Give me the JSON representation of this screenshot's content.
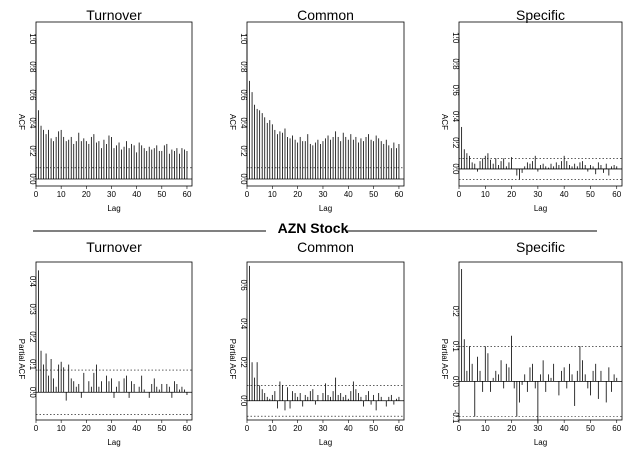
{
  "figure": {
    "banner": "AZN Stock"
  },
  "chart_data": [
    {
      "type": "bar",
      "title": "Turnover",
      "xlabel": "Lag",
      "ylabel": "ACF",
      "xlim": [
        0,
        62
      ],
      "ylim": [
        -0.05,
        1.12
      ],
      "xticks": [
        0,
        10,
        20,
        30,
        40,
        50,
        60
      ],
      "yticks": [
        0.0,
        0.2,
        0.4,
        0.6,
        0.8,
        1.0
      ],
      "ytick_labels": [
        "0.0",
        "0.2",
        "0.4",
        "0.6",
        "0.8",
        "1.0"
      ],
      "conf_bound": 0.08,
      "lags": [
        0,
        1,
        2,
        3,
        4,
        5,
        6,
        7,
        8,
        9,
        10,
        11,
        12,
        13,
        14,
        15,
        16,
        17,
        18,
        19,
        20,
        21,
        22,
        23,
        24,
        25,
        26,
        27,
        28,
        29,
        30,
        31,
        32,
        33,
        34,
        35,
        36,
        37,
        38,
        39,
        40,
        41,
        42,
        43,
        44,
        45,
        46,
        47,
        48,
        49,
        50,
        51,
        52,
        53,
        54,
        55,
        56,
        57,
        58,
        59,
        60
      ],
      "values": [
        1.0,
        0.49,
        0.38,
        0.35,
        0.32,
        0.35,
        0.29,
        0.27,
        0.3,
        0.34,
        0.35,
        0.3,
        0.27,
        0.28,
        0.3,
        0.25,
        0.27,
        0.33,
        0.27,
        0.29,
        0.27,
        0.25,
        0.3,
        0.32,
        0.26,
        0.27,
        0.22,
        0.28,
        0.25,
        0.31,
        0.3,
        0.22,
        0.24,
        0.26,
        0.21,
        0.23,
        0.27,
        0.22,
        0.25,
        0.24,
        0.19,
        0.26,
        0.24,
        0.22,
        0.2,
        0.23,
        0.21,
        0.22,
        0.24,
        0.2,
        0.2,
        0.24,
        0.25,
        0.18,
        0.21,
        0.2,
        0.22,
        0.18,
        0.22,
        0.21,
        0.2
      ]
    },
    {
      "type": "bar",
      "title": "Common",
      "xlabel": "Lag",
      "ylabel": "ACF",
      "xlim": [
        0,
        62
      ],
      "ylim": [
        -0.05,
        1.12
      ],
      "xticks": [
        0,
        10,
        20,
        30,
        40,
        50,
        60
      ],
      "yticks": [
        0.0,
        0.2,
        0.4,
        0.6,
        0.8,
        1.0
      ],
      "ytick_labels": [
        "0.0",
        "0.2",
        "0.4",
        "0.6",
        "0.8",
        "1.0"
      ],
      "conf_bound": 0.08,
      "lags": [
        0,
        1,
        2,
        3,
        4,
        5,
        6,
        7,
        8,
        9,
        10,
        11,
        12,
        13,
        14,
        15,
        16,
        17,
        18,
        19,
        20,
        21,
        22,
        23,
        24,
        25,
        26,
        27,
        28,
        29,
        30,
        31,
        32,
        33,
        34,
        35,
        36,
        37,
        38,
        39,
        40,
        41,
        42,
        43,
        44,
        45,
        46,
        47,
        48,
        49,
        50,
        51,
        52,
        53,
        54,
        55,
        56,
        57,
        58,
        59,
        60
      ],
      "values": [
        1.0,
        0.7,
        0.62,
        0.53,
        0.5,
        0.49,
        0.47,
        0.44,
        0.4,
        0.42,
        0.39,
        0.35,
        0.32,
        0.34,
        0.33,
        0.36,
        0.3,
        0.29,
        0.31,
        0.28,
        0.26,
        0.3,
        0.27,
        0.27,
        0.32,
        0.25,
        0.24,
        0.26,
        0.28,
        0.25,
        0.27,
        0.29,
        0.31,
        0.28,
        0.3,
        0.34,
        0.3,
        0.27,
        0.33,
        0.3,
        0.28,
        0.32,
        0.28,
        0.3,
        0.26,
        0.29,
        0.27,
        0.3,
        0.32,
        0.28,
        0.27,
        0.31,
        0.29,
        0.27,
        0.25,
        0.28,
        0.24,
        0.22,
        0.26,
        0.22,
        0.25
      ]
    },
    {
      "type": "bar",
      "title": "Specific",
      "xlabel": "Lag",
      "ylabel": "ACF",
      "xlim": [
        0,
        62
      ],
      "ylim": [
        -0.13,
        1.12
      ],
      "xticks": [
        0,
        10,
        20,
        30,
        40,
        50,
        60
      ],
      "yticks": [
        0.0,
        0.2,
        0.4,
        0.6,
        0.8,
        1.0
      ],
      "ytick_labels": [
        "0.0",
        "0.2",
        "0.4",
        "0.6",
        "0.8",
        "1.0"
      ],
      "conf_bound": 0.08,
      "lags": [
        0,
        1,
        2,
        3,
        4,
        5,
        6,
        7,
        8,
        9,
        10,
        11,
        12,
        13,
        14,
        15,
        16,
        17,
        18,
        19,
        20,
        21,
        22,
        23,
        24,
        25,
        26,
        27,
        28,
        29,
        30,
        31,
        32,
        33,
        34,
        35,
        36,
        37,
        38,
        39,
        40,
        41,
        42,
        43,
        44,
        45,
        46,
        47,
        48,
        49,
        50,
        51,
        52,
        53,
        54,
        55,
        56,
        57,
        58,
        59,
        60
      ],
      "values": [
        1.0,
        0.32,
        0.15,
        0.12,
        0.1,
        0.05,
        0.04,
        -0.02,
        0.06,
        0.08,
        0.1,
        0.12,
        0.07,
        0.04,
        0.08,
        0.03,
        0.06,
        0.08,
        0.02,
        0.05,
        0.09,
        0.0,
        -0.05,
        -0.08,
        -0.03,
        0.02,
        0.05,
        0.04,
        0.06,
        0.1,
        -0.02,
        0.03,
        0.04,
        0.02,
        0.01,
        0.04,
        0.02,
        0.05,
        0.03,
        0.06,
        0.1,
        0.06,
        0.03,
        0.02,
        0.04,
        0.02,
        0.05,
        0.06,
        0.03,
        -0.02,
        0.03,
        0.02,
        -0.04,
        0.05,
        0.03,
        -0.03,
        0.04,
        -0.05,
        0.02,
        0.03,
        0.02
      ]
    },
    {
      "type": "bar",
      "title": "Turnover",
      "xlabel": "Lag",
      "ylabel": "Partial ACF",
      "xlim": [
        0,
        62
      ],
      "ylim": [
        -0.1,
        0.47
      ],
      "xticks": [
        0,
        10,
        20,
        30,
        40,
        50,
        60
      ],
      "yticks": [
        0.0,
        0.1,
        0.2,
        0.3,
        0.4
      ],
      "ytick_labels": [
        "0.0",
        "0.1",
        "0.2",
        "0.3",
        "0.4"
      ],
      "tick_label_values": [
        0.0,
        0.2,
        0.4
      ],
      "conf_bound": 0.08,
      "lags": [
        1,
        2,
        3,
        4,
        5,
        6,
        7,
        8,
        9,
        10,
        11,
        12,
        13,
        14,
        15,
        16,
        17,
        18,
        19,
        20,
        21,
        22,
        23,
        24,
        25,
        26,
        27,
        28,
        29,
        30,
        31,
        32,
        33,
        34,
        35,
        36,
        37,
        38,
        39,
        40,
        41,
        42,
        43,
        44,
        45,
        46,
        47,
        48,
        49,
        50,
        51,
        52,
        53,
        54,
        55,
        56,
        57,
        58,
        59,
        60
      ],
      "values": [
        0.44,
        0.15,
        0.1,
        0.14,
        0.06,
        0.12,
        0.05,
        0.02,
        0.1,
        0.11,
        0.09,
        -0.03,
        0.1,
        0.05,
        0.04,
        0.02,
        0.03,
        -0.02,
        0.07,
        0.0,
        0.04,
        0.02,
        0.07,
        0.1,
        0.02,
        0.04,
        0.0,
        0.06,
        0.04,
        0.05,
        -0.02,
        0.02,
        0.04,
        0.0,
        0.05,
        0.06,
        -0.02,
        0.04,
        0.03,
        0.0,
        0.02,
        0.06,
        0.01,
        0.0,
        -0.02,
        0.03,
        0.05,
        0.02,
        0.01,
        0.03,
        0.0,
        0.03,
        0.02,
        -0.02,
        0.04,
        0.03,
        0.01,
        0.02,
        0.01,
        -0.01
      ]
    },
    {
      "type": "bar",
      "title": "Common",
      "xlabel": "Lag",
      "ylabel": "Partial ACF",
      "xlim": [
        0,
        62
      ],
      "ylim": [
        -0.1,
        0.72
      ],
      "xticks": [
        0,
        10,
        20,
        30,
        40,
        50,
        60
      ],
      "yticks": [
        0.0,
        0.2,
        0.4,
        0.6
      ],
      "ytick_labels": [
        "0.0",
        "0.2",
        "0.4",
        "0.6"
      ],
      "conf_bound": 0.08,
      "lags": [
        1,
        2,
        3,
        4,
        5,
        6,
        7,
        8,
        9,
        10,
        11,
        12,
        13,
        14,
        15,
        16,
        17,
        18,
        19,
        20,
        21,
        22,
        23,
        24,
        25,
        26,
        27,
        28,
        29,
        30,
        31,
        32,
        33,
        34,
        35,
        36,
        37,
        38,
        39,
        40,
        41,
        42,
        43,
        44,
        45,
        46,
        47,
        48,
        49,
        50,
        51,
        52,
        53,
        54,
        55,
        56,
        57,
        58,
        59,
        60
      ],
      "values": [
        0.7,
        0.2,
        0.12,
        0.2,
        0.08,
        0.06,
        0.04,
        0.02,
        0.01,
        0.03,
        0.05,
        -0.04,
        0.1,
        0.08,
        -0.05,
        0.07,
        -0.04,
        0.05,
        0.04,
        0.02,
        0.04,
        -0.03,
        0.03,
        0.02,
        0.05,
        0.06,
        -0.02,
        0.03,
        0.0,
        0.04,
        0.09,
        0.03,
        0.02,
        0.05,
        0.12,
        0.03,
        0.04,
        0.02,
        0.03,
        0.01,
        0.05,
        0.1,
        0.06,
        0.04,
        0.02,
        -0.03,
        0.03,
        0.05,
        -0.02,
        0.03,
        -0.05,
        0.04,
        0.02,
        0.0,
        -0.03,
        0.02,
        0.03,
        -0.02,
        0.01,
        0.02
      ]
    },
    {
      "type": "bar",
      "title": "Specific",
      "xlabel": "Lag",
      "ylabel": "Partial ACF",
      "xlim": [
        0,
        62
      ],
      "ylim": [
        -0.11,
        0.34
      ],
      "xticks": [
        0,
        10,
        20,
        30,
        40,
        50,
        60
      ],
      "yticks": [
        -0.1,
        0.0,
        0.1,
        0.2
      ],
      "ytick_labels": [
        "-0.1",
        "0.0",
        "0.1",
        "0.2"
      ],
      "conf_bound": 0.1,
      "lags": [
        1,
        2,
        3,
        4,
        5,
        6,
        7,
        8,
        9,
        10,
        11,
        12,
        13,
        14,
        15,
        16,
        17,
        18,
        19,
        20,
        21,
        22,
        23,
        24,
        25,
        26,
        27,
        28,
        29,
        30,
        31,
        32,
        33,
        34,
        35,
        36,
        37,
        38,
        39,
        40,
        41,
        42,
        43,
        44,
        45,
        46,
        47,
        48,
        49,
        50,
        51,
        52,
        53,
        54,
        55,
        56,
        57,
        58,
        59,
        60
      ],
      "values": [
        0.32,
        0.12,
        0.03,
        0.1,
        0.05,
        -0.1,
        0.07,
        0.03,
        -0.03,
        0.1,
        0.08,
        -0.03,
        0.01,
        0.03,
        0.02,
        0.06,
        -0.02,
        0.05,
        0.04,
        0.13,
        -0.02,
        -0.1,
        -0.06,
        -0.01,
        0.02,
        -0.03,
        0.04,
        0.05,
        -0.02,
        -0.12,
        0.02,
        0.06,
        -0.03,
        0.02,
        0.01,
        0.05,
        0.0,
        -0.04,
        0.03,
        0.04,
        -0.02,
        0.05,
        0.02,
        -0.07,
        0.03,
        0.1,
        0.06,
        0.02,
        -0.02,
        -0.04,
        0.03,
        0.05,
        -0.05,
        0.03,
        0.0,
        -0.06,
        0.04,
        -0.03,
        0.02,
        0.01
      ]
    }
  ]
}
